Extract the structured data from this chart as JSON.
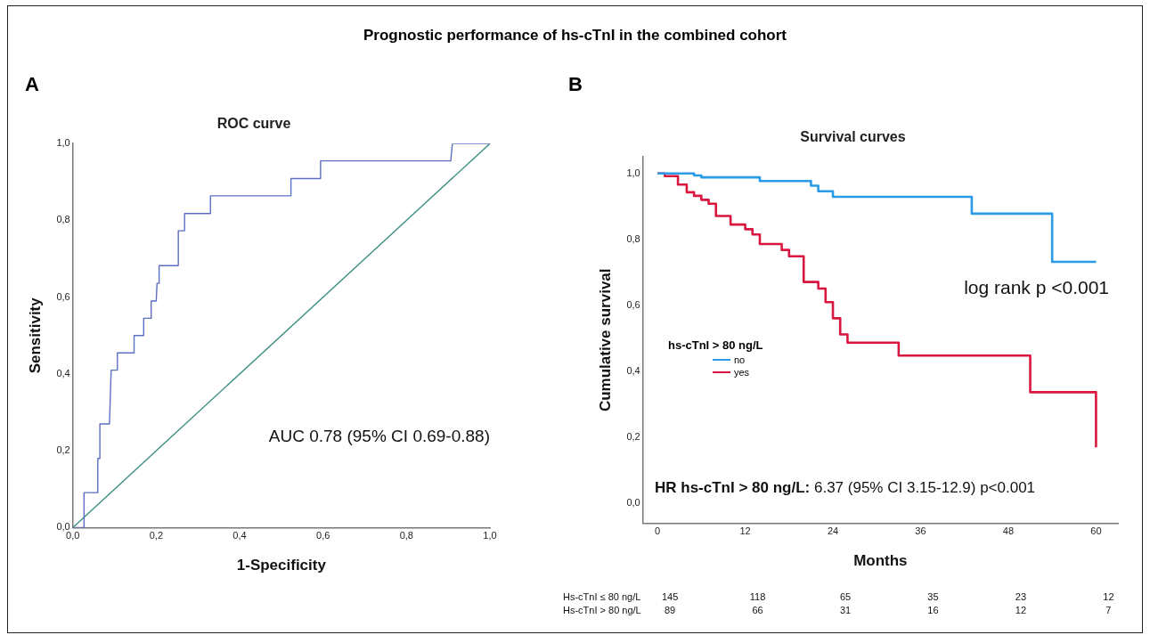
{
  "chart_data": [
    {
      "type": "line",
      "title": "ROC curve",
      "subtitle": "A",
      "xlabel": "1-Specificity",
      "ylabel": "Sensitivity",
      "annotations": [
        "Prognostic performance of hs-cTnI in the combined cohort",
        "AUC 0.78 (95% CI 0.69-0.88)"
      ],
      "xlim": [
        0,
        1
      ],
      "ylim": [
        0,
        1
      ],
      "xticks": [
        {
          "value": 0,
          "label": "0,0"
        },
        {
          "value": 0.2,
          "label": "0,2"
        },
        {
          "value": 0.4,
          "label": "0,4"
        },
        {
          "value": 0.6,
          "label": "0,6"
        },
        {
          "value": 0.8,
          "label": "0,8"
        },
        {
          "value": 1,
          "label": "1,0"
        }
      ],
      "yticks": [
        {
          "value": 0,
          "label": "0,0"
        },
        {
          "value": 0.2,
          "label": "0,2"
        },
        {
          "value": 0.4,
          "label": "0,4"
        },
        {
          "value": 0.6,
          "label": "0,6"
        },
        {
          "value": 0.8,
          "label": "0,8"
        },
        {
          "value": 1,
          "label": "1,0"
        }
      ],
      "marker": "none",
      "line_style": "solid",
      "series": [
        {
          "color": "#5b6fc4",
          "x": [
            0,
            0.027,
            0.027,
            0.06,
            0.06,
            0.065,
            0.065,
            0.088,
            0.092,
            0.107,
            0.107,
            0.147,
            0.147,
            0.17,
            0.17,
            0.188,
            0.188,
            0.2,
            0.202,
            0.207,
            0.207,
            0.253,
            0.253,
            0.268,
            0.268,
            0.33,
            0.33,
            0.523,
            0.523,
            0.594,
            0.594,
            0.906,
            0.91,
            1
          ],
          "values": [
            0,
            0,
            0.091,
            0.091,
            0.18,
            0.18,
            0.27,
            0.27,
            0.41,
            0.41,
            0.455,
            0.455,
            0.5,
            0.5,
            0.545,
            0.545,
            0.59,
            0.59,
            0.636,
            0.636,
            0.682,
            0.682,
            0.773,
            0.773,
            0.818,
            0.818,
            0.864,
            0.864,
            0.909,
            0.909,
            0.955,
            0.955,
            1,
            1
          ]
        },
        {
          "color": "#3d8f85",
          "x": [
            0,
            1
          ],
          "values": [
            0,
            1
          ]
        }
      ]
    },
    {
      "type": "step",
      "title": "Survival curves",
      "subtitle": "B",
      "xlabel": "Months",
      "ylabel": "Cumulative survival",
      "legend_title": "hs-cTnI > 80 ng/L",
      "legend": "left",
      "annotations": [
        "log rank p <0.001",
        "HR hs-cTnI > 80 ng/L: 6.37 (95% CI 3.15-12.9) p<0.001",
        "Hs-cTnI ≤ 80 ng/L",
        "145",
        "118",
        "65",
        "35",
        "23",
        "12",
        "Hs-cTnI > 80 ng/L",
        "89",
        "66",
        "31",
        "16",
        "12",
        "7"
      ],
      "xlim": [
        -2,
        63
      ],
      "ylim": [
        -0.06,
        1.05
      ],
      "xticks": [
        0,
        12,
        24,
        36,
        48,
        60
      ],
      "yticks": [
        {
          "value": 0,
          "label": "0,0"
        },
        {
          "value": 0.2,
          "label": "0,2"
        },
        {
          "value": 0.4,
          "label": "0,4"
        },
        {
          "value": 0.6,
          "label": "0,6"
        },
        {
          "value": 0.8,
          "label": "0,8"
        },
        {
          "value": 1,
          "label": "1,0"
        }
      ],
      "marker": "none",
      "line_style": "solid",
      "series": [
        {
          "name": "no",
          "color": "#2b9be8",
          "x": [
            0,
            5,
            6,
            14,
            21,
            22,
            24,
            43,
            54,
            60
          ],
          "values": [
            1,
            0.994,
            0.988,
            0.977,
            0.963,
            0.946,
            0.929,
            0.878,
            0.732,
            0.732
          ]
        },
        {
          "name": "yes",
          "color": "#d9163f",
          "x": [
            0,
            1,
            2.8,
            4,
            5,
            6,
            7,
            8,
            10,
            12,
            13,
            14,
            17,
            18,
            20,
            22,
            23,
            24,
            25,
            26,
            33,
            51,
            60
          ],
          "values": [
            1,
            0.992,
            0.966,
            0.943,
            0.932,
            0.92,
            0.908,
            0.871,
            0.845,
            0.831,
            0.815,
            0.786,
            0.768,
            0.749,
            0.671,
            0.651,
            0.61,
            0.561,
            0.512,
            0.487,
            0.448,
            0.337,
            0.17
          ]
        }
      ]
    }
  ]
}
